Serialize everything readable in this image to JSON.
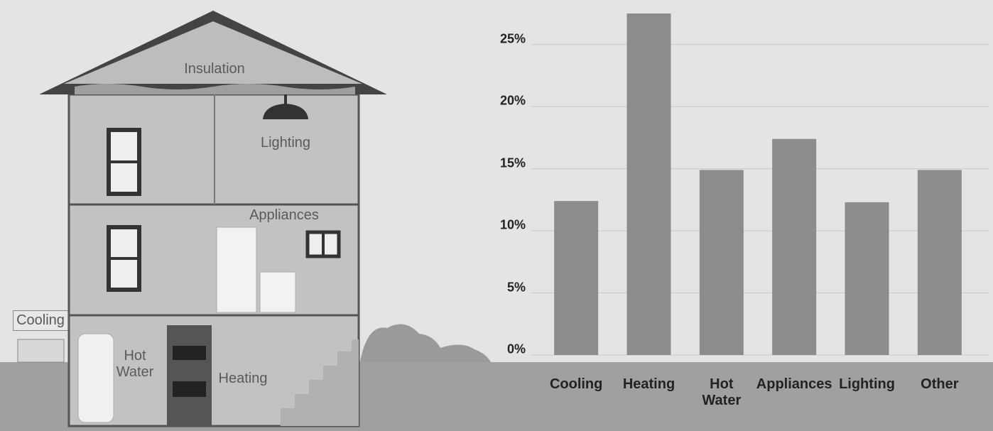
{
  "chart_data": {
    "type": "bar",
    "categories": [
      "Cooling",
      "Heating",
      "Hot Water",
      "Appliances",
      "Lighting",
      "Other"
    ],
    "values": [
      12.4,
      27.5,
      14.9,
      17.4,
      12.3,
      14.9
    ],
    "color": "#8c8c8c",
    "ylim": [
      0,
      28.3
    ],
    "yticks": [
      {
        "value": 0,
        "label": "0%"
      },
      {
        "value": 5,
        "label": "5%"
      },
      {
        "value": 10,
        "label": "10%"
      },
      {
        "value": 15,
        "label": "15%"
      },
      {
        "value": 20,
        "label": "20%"
      },
      {
        "value": 25,
        "label": "25%"
      }
    ],
    "grid": true
  },
  "illustration": {
    "labels": {
      "insulation": "Insulation",
      "lighting": "Lighting",
      "appliances": "Appliances",
      "cooling": "Cooling",
      "hot_water": "Hot Water",
      "heating": "Heating"
    }
  }
}
